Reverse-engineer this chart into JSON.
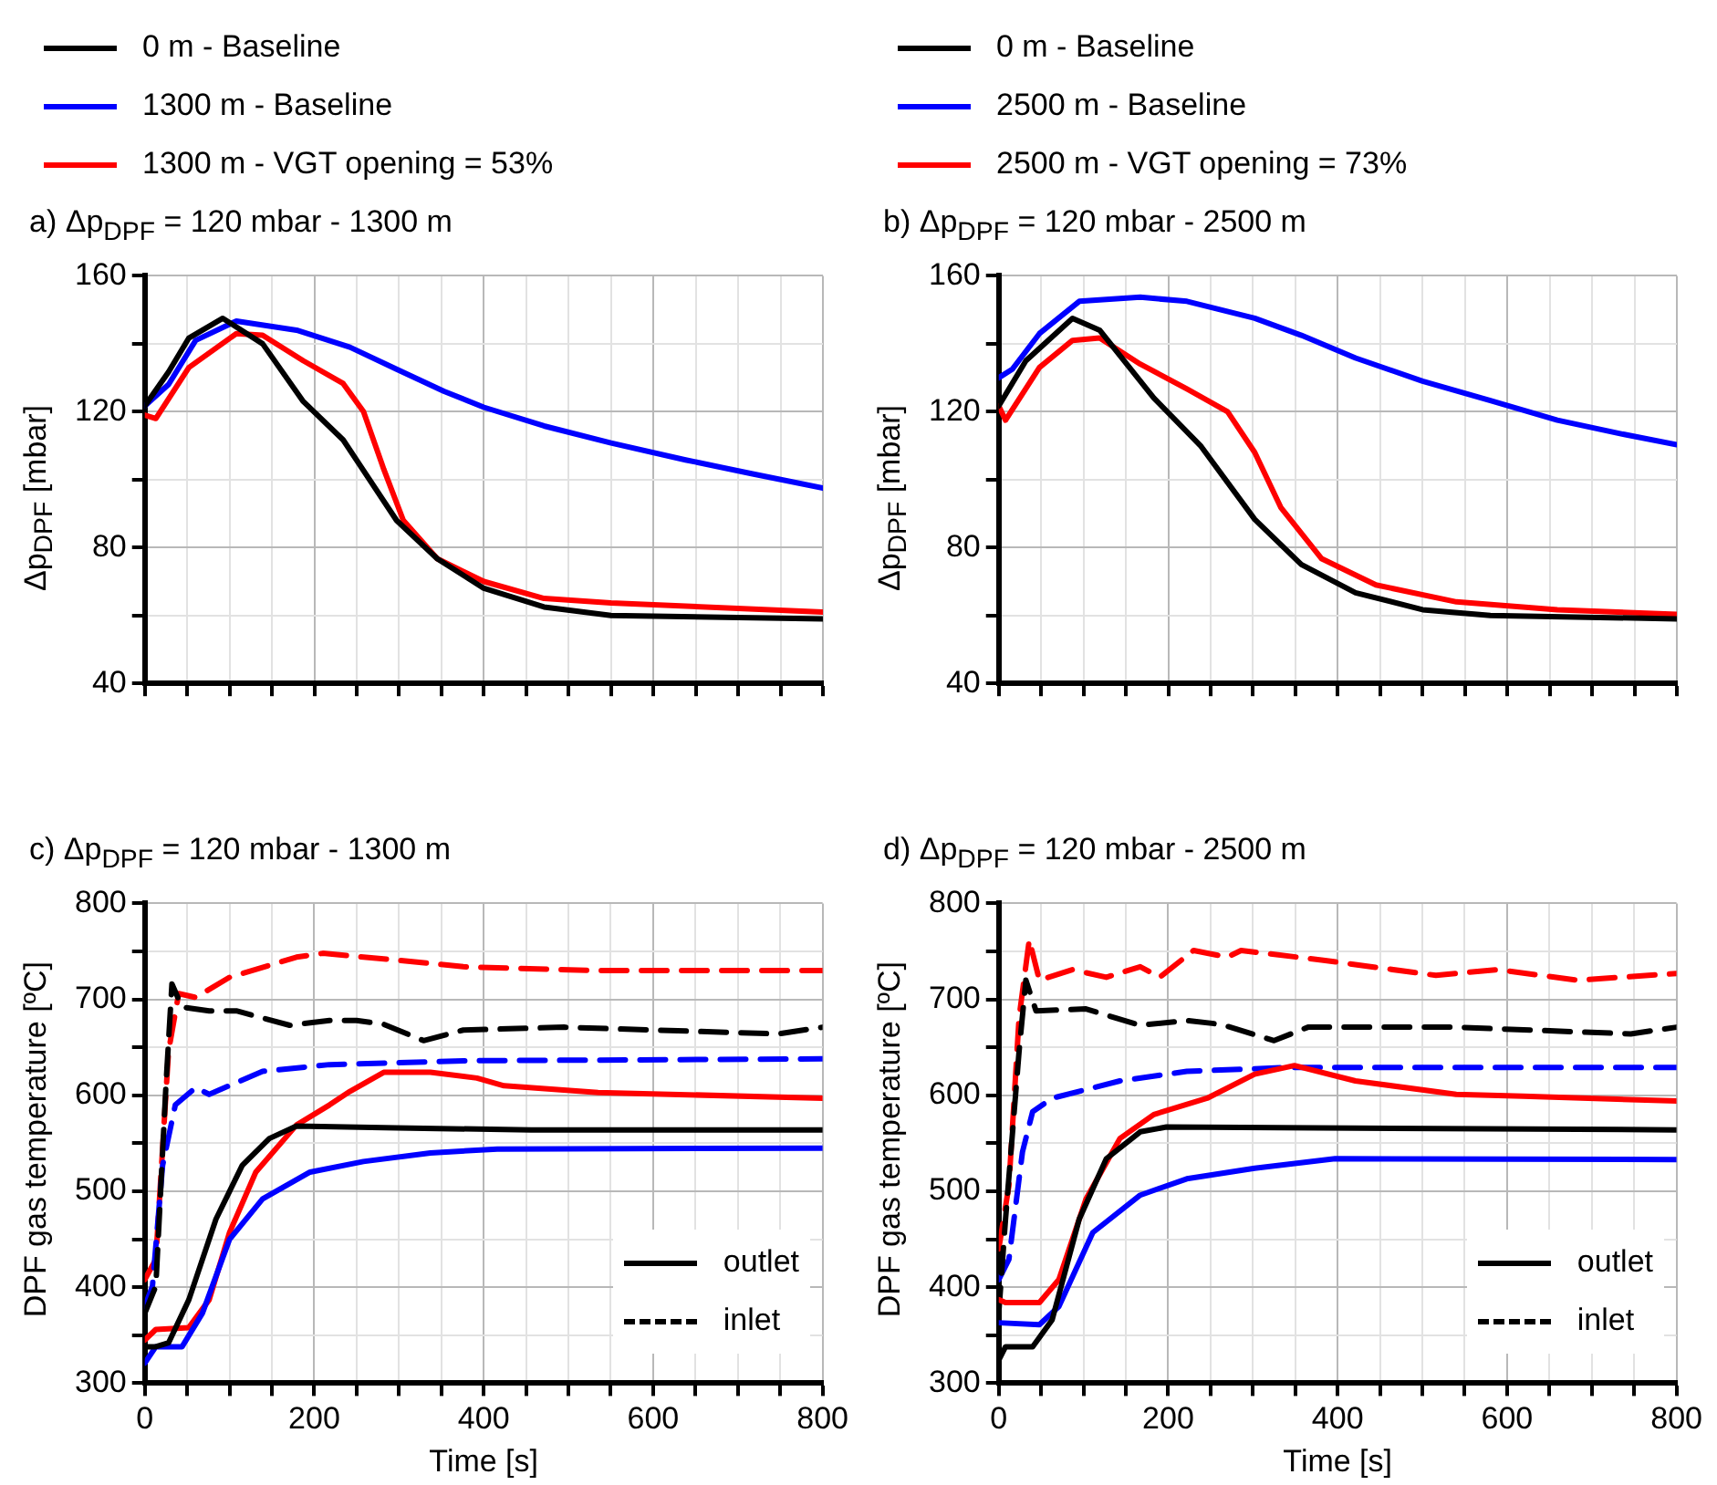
{
  "chart_data": [
    {
      "type": "line",
      "title": "a) Δp$_{DPF}$ = 120 mbar - 1300 m",
      "ylabel": "Δp$_{DPF}$ [mbar]",
      "legend": "top",
      "grid": true,
      "marker": "none",
      "tick_labels": "y",
      "xlim": [
        0,
        800
      ],
      "ylim": [
        40,
        160
      ],
      "xticks": [
        0,
        {
          "value": 50,
          "label": null
        },
        {
          "value": 100,
          "label": null
        },
        {
          "value": 150,
          "label": null
        },
        200,
        {
          "value": 250,
          "label": null
        },
        {
          "value": 300,
          "label": null
        },
        {
          "value": 350,
          "label": null
        },
        400,
        {
          "value": 450,
          "label": null
        },
        {
          "value": 500,
          "label": null
        },
        {
          "value": 550,
          "label": null
        },
        600,
        {
          "value": 650,
          "label": null
        },
        {
          "value": 700,
          "label": null
        },
        {
          "value": 750,
          "label": null
        },
        800
      ],
      "yticks": [
        40,
        {
          "value": 60,
          "label": null
        },
        80,
        {
          "value": 100,
          "label": null
        },
        120,
        {
          "value": 140,
          "label": null
        },
        160
      ],
      "series": [
        {
          "name": "0 m - Baseline",
          "color": "#000000",
          "x": [
            0,
            28,
            52,
            92,
            139,
            187,
            234,
            297,
            345,
            400,
            471,
            550,
            800
          ],
          "values": [
            121.7,
            131.7,
            141.7,
            147.5,
            140,
            123,
            111.7,
            88,
            76.7,
            68,
            62.5,
            60,
            59
          ]
        },
        {
          "name": "1300 m - Baseline",
          "color": "#0000ff",
          "x": [
            0,
            28,
            60,
            108,
            179,
            242,
            297,
            353,
            400,
            471,
            550,
            638,
            717,
            800
          ],
          "values": [
            121.7,
            128,
            141,
            146.7,
            144,
            139,
            132.5,
            126,
            121.3,
            115.8,
            110.8,
            105.8,
            101.7,
            97.5
          ]
        },
        {
          "name": "1300 m - VGT opening = 53%",
          "color": "#ff0000",
          "x": [
            0,
            13,
            52,
            108,
            139,
            187,
            234,
            258,
            282,
            305,
            345,
            400,
            471,
            550,
            800
          ],
          "values": [
            119,
            118,
            133,
            143,
            142.5,
            135,
            128.3,
            120,
            103,
            88,
            76.7,
            70,
            65,
            63.7,
            61
          ]
        }
      ]
    },
    {
      "type": "line",
      "title": "b) Δp$_{DPF}$ = 120 mbar - 2500 m",
      "ylabel": "Δp$_{DPF}$ [mbar]",
      "legend": "top",
      "grid": true,
      "marker": "none",
      "tick_labels": "y",
      "xlim": [
        0,
        800
      ],
      "ylim": [
        40,
        160
      ],
      "xticks": [
        0,
        {
          "value": 50,
          "label": null
        },
        {
          "value": 100,
          "label": null
        },
        {
          "value": 150,
          "label": null
        },
        200,
        {
          "value": 250,
          "label": null
        },
        {
          "value": 300,
          "label": null
        },
        {
          "value": 350,
          "label": null
        },
        400,
        {
          "value": 450,
          "label": null
        },
        {
          "value": 500,
          "label": null
        },
        {
          "value": 550,
          "label": null
        },
        600,
        {
          "value": 650,
          "label": null
        },
        {
          "value": 700,
          "label": null
        },
        {
          "value": 750,
          "label": null
        },
        800
      ],
      "yticks": [
        40,
        {
          "value": 60,
          "label": null
        },
        80,
        {
          "value": 100,
          "label": null
        },
        120,
        {
          "value": 140,
          "label": null
        },
        160
      ],
      "series": [
        {
          "name": "0 m - Baseline",
          "color": "#000000",
          "x": [
            0,
            32,
            87,
            119,
            183,
            238,
            302,
            357,
            421,
            500,
            580,
            800
          ],
          "values": [
            121.7,
            135,
            147.5,
            144,
            124,
            110,
            88.3,
            75,
            66.7,
            61.7,
            60,
            59
          ]
        },
        {
          "name": "2500 m - Baseline",
          "color": "#0000ff",
          "x": [
            0,
            16,
            48,
            95,
            167,
            222,
            302,
            357,
            421,
            500,
            580,
            659,
            738,
            800
          ],
          "values": [
            130,
            132.5,
            143,
            152.5,
            153.7,
            152.5,
            147.5,
            142.5,
            135.8,
            129,
            123.3,
            117.5,
            113.3,
            110.3
          ]
        },
        {
          "name": "2500 m - VGT opening = 73%",
          "color": "#ff0000",
          "x": [
            0,
            8,
            48,
            87,
            119,
            167,
            222,
            270,
            302,
            333,
            381,
            445,
            540,
            659,
            800
          ],
          "values": [
            121.7,
            117.5,
            133,
            141,
            141.7,
            134,
            126.7,
            120,
            108,
            91.7,
            76.7,
            69,
            64,
            61.7,
            60.3
          ]
        }
      ]
    },
    {
      "type": "line",
      "title": "c) Δp$_{DPF}$ = 120 mbar - 1300 m",
      "xlabel": "Time [s]",
      "ylabel": "DPF gas temperature [ºC]",
      "legend": "bottom right",
      "grid": true,
      "marker": "none",
      "xlim": [
        0,
        800
      ],
      "ylim": [
        300,
        800
      ],
      "xticks": [
        0,
        {
          "value": 50,
          "label": null
        },
        {
          "value": 100,
          "label": null
        },
        {
          "value": 150,
          "label": null
        },
        200,
        {
          "value": 250,
          "label": null
        },
        {
          "value": 300,
          "label": null
        },
        {
          "value": 350,
          "label": null
        },
        400,
        {
          "value": 450,
          "label": null
        },
        {
          "value": 500,
          "label": null
        },
        {
          "value": 550,
          "label": null
        },
        600,
        {
          "value": 650,
          "label": null
        },
        {
          "value": 700,
          "label": null
        },
        {
          "value": 750,
          "label": null
        },
        800
      ],
      "yticks": [
        300,
        {
          "value": 350,
          "label": null
        },
        400,
        {
          "value": 450,
          "label": null
        },
        500,
        {
          "value": 550,
          "label": null
        },
        600,
        {
          "value": 650,
          "label": null
        },
        700,
        {
          "value": 750,
          "label": null
        },
        800
      ],
      "series": [
        {
          "name": "outlet",
          "color": "#000000",
          "line_style": "solid",
          "x": [
            0,
            13,
            28,
            52,
            84,
            115,
            147,
            179,
            297,
            456,
            800
          ],
          "values": [
            338,
            338,
            342,
            387,
            471,
            527,
            555,
            568,
            566,
            564,
            564
          ]
        },
        {
          "color": "#0000ff",
          "line_style": "solid",
          "x": [
            0,
            13,
            44,
            68,
            100,
            139,
            195,
            258,
            337,
            416,
            800
          ],
          "values": [
            321,
            338,
            338,
            373,
            450,
            492,
            520,
            531,
            540,
            544,
            545
          ]
        },
        {
          "color": "#ff0000",
          "line_style": "solid",
          "x": [
            0,
            13,
            52,
            76,
            100,
            131,
            179,
            218,
            242,
            282,
            337,
            392,
            424,
            535,
            800
          ],
          "values": [
            345,
            356,
            358,
            387,
            457,
            520,
            569,
            590,
            604,
            624,
            624,
            618,
            610,
            603,
            597
          ]
        },
        {
          "name": "inlet",
          "color": "#000000",
          "line_style": "dashed",
          "x": [
            0,
            13,
            25,
            32,
            44,
            76,
            108,
            171,
            218,
            250,
            282,
            329,
            376,
            495,
            748,
            800
          ],
          "values": [
            373,
            401,
            611,
            716,
            692,
            688,
            688,
            673,
            678,
            678,
            674,
            657,
            668,
            671,
            664,
            671
          ]
        },
        {
          "color": "#0000ff",
          "line_style": "dashed",
          "x": [
            0,
            9,
            21,
            36,
            60,
            76,
            139,
            218,
            376,
            800
          ],
          "values": [
            380,
            401,
            527,
            590,
            608,
            601,
            625,
            632,
            636,
            638
          ]
        },
        {
          "color": "#ff0000",
          "line_style": "dashed",
          "x": [
            0,
            13,
            28,
            40,
            60,
            100,
            179,
            210,
            297,
            376,
            535,
            800
          ],
          "values": [
            408,
            429,
            646,
            706,
            702,
            723,
            744,
            748,
            741,
            734,
            730,
            730
          ]
        }
      ]
    },
    {
      "type": "line",
      "title": "d) Δp$_{DPF}$ = 120 mbar - 2500 m",
      "xlabel": "Time [s]",
      "ylabel": "DPF gas temperature [ºC]",
      "legend": "bottom right",
      "grid": true,
      "marker": "none",
      "xlim": [
        0,
        800
      ],
      "ylim": [
        300,
        800
      ],
      "xticks": [
        0,
        {
          "value": 50,
          "label": null
        },
        {
          "value": 100,
          "label": null
        },
        {
          "value": 150,
          "label": null
        },
        200,
        {
          "value": 250,
          "label": null
        },
        {
          "value": 300,
          "label": null
        },
        {
          "value": 350,
          "label": null
        },
        400,
        {
          "value": 450,
          "label": null
        },
        {
          "value": 500,
          "label": null
        },
        {
          "value": 550,
          "label": null
        },
        600,
        {
          "value": 650,
          "label": null
        },
        {
          "value": 700,
          "label": null
        },
        {
          "value": 750,
          "label": null
        },
        800
      ],
      "yticks": [
        300,
        {
          "value": 350,
          "label": null
        },
        400,
        {
          "value": 450,
          "label": null
        },
        500,
        {
          "value": 550,
          "label": null
        },
        600,
        {
          "value": 650,
          "label": null
        },
        700,
        {
          "value": 750,
          "label": null
        },
        800
      ],
      "series": [
        {
          "name": "outlet",
          "color": "#000000",
          "line_style": "solid",
          "x": [
            0,
            8,
            40,
            63,
            95,
            127,
            167,
            198,
            800
          ],
          "values": [
            324,
            338,
            338,
            366,
            471,
            534,
            562,
            567,
            564
          ]
        },
        {
          "color": "#0000ff",
          "line_style": "solid",
          "x": [
            0,
            48,
            71,
            111,
            167,
            222,
            302,
            397,
            800
          ],
          "values": [
            363,
            361,
            380,
            457,
            496,
            513,
            524,
            534,
            533
          ]
        },
        {
          "color": "#ff0000",
          "line_style": "solid",
          "x": [
            0,
            8,
            48,
            71,
            103,
            143,
            183,
            246,
            302,
            349,
            421,
            540,
            619,
            800
          ],
          "values": [
            387,
            384,
            384,
            408,
            492,
            555,
            580,
            597,
            622,
            631,
            615,
            601,
            599,
            594
          ]
        },
        {
          "name": "inlet",
          "color": "#000000",
          "line_style": "dashed",
          "x": [
            0,
            8,
            24,
            32,
            44,
            103,
            167,
            222,
            262,
            325,
            365,
            540,
            746,
            800
          ],
          "values": [
            373,
            471,
            646,
            720,
            688,
            690,
            673,
            678,
            674,
            657,
            671,
            671,
            664,
            671
          ]
        },
        {
          "color": "#0000ff",
          "line_style": "dashed",
          "x": [
            0,
            12,
            28,
            40,
            63,
            143,
            222,
            341,
            800
          ],
          "values": [
            408,
            429,
            541,
            583,
            597,
            615,
            625,
            629,
            629
          ]
        },
        {
          "color": "#ff0000",
          "line_style": "dashed",
          "x": [
            0,
            12,
            24,
            36,
            48,
            87,
            127,
            167,
            190,
            230,
            270,
            286,
            381,
            516,
            588,
            683,
            800
          ],
          "values": [
            440,
            506,
            681,
            762,
            720,
            731,
            723,
            734,
            723,
            751,
            744,
            751,
            741,
            725,
            731,
            720,
            727
          ]
        }
      ]
    }
  ]
}
